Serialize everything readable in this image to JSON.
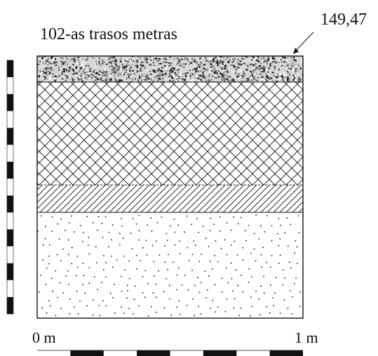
{
  "title": "102-as trasos metras",
  "elevation": "149,47",
  "scale_bar": {
    "start_label": "0 m",
    "end_label": "1 m",
    "segments": 8
  },
  "vertical_scale": {
    "segments": 15
  },
  "layers": [
    {
      "name": "top-layer",
      "pattern": "speckled",
      "relative_thickness": 0.1
    },
    {
      "name": "crosshatch-layer",
      "pattern": "crosshatch",
      "relative_thickness": 0.43
    },
    {
      "name": "diagonal-layer",
      "pattern": "diagonal",
      "relative_thickness": 0.1
    },
    {
      "name": "dotted-layer",
      "pattern": "dotted",
      "relative_thickness": 0.37
    }
  ],
  "colors": {
    "ink": "#111111",
    "background": "#ffffff"
  }
}
